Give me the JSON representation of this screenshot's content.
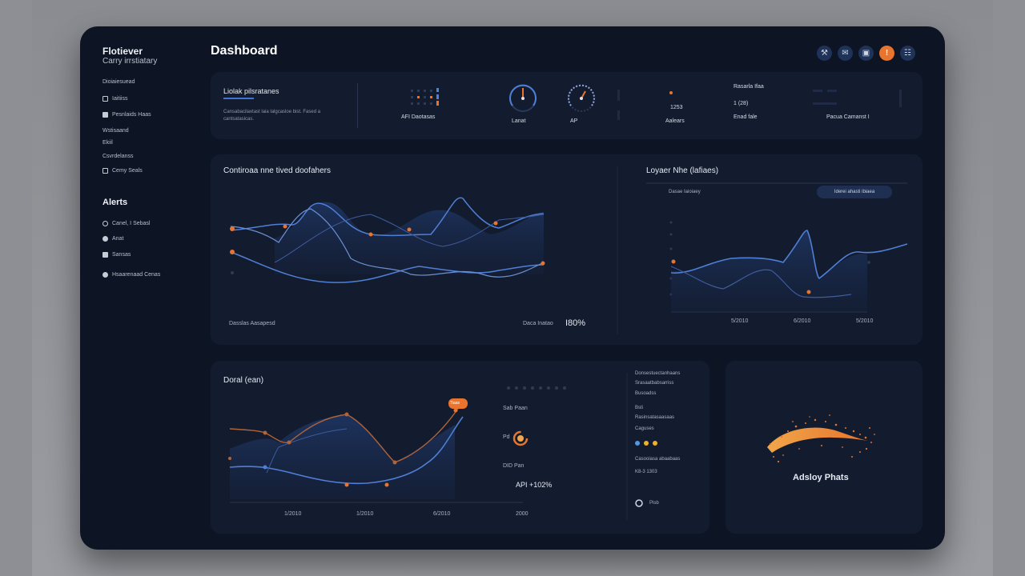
{
  "sidebar": {
    "brand_title": "Flotiever",
    "brand_subtitle": "Carry irrstiatary",
    "items": [
      {
        "label": "Dioiaiesuead"
      },
      {
        "label": "Iaitiiss"
      },
      {
        "label": "Pesnlaids Haas"
      },
      {
        "label": "Wstisaand"
      },
      {
        "label": "Ekiil"
      },
      {
        "label": "Csvrdelanss"
      },
      {
        "label": "Cemy Seals"
      }
    ],
    "alerts_heading": "Alerts",
    "alerts": [
      {
        "label": "Canel, I Sebasl"
      },
      {
        "label": "Anat"
      },
      {
        "label": "Sansas"
      },
      {
        "label": "Hsaarenaad Cenas"
      }
    ]
  },
  "header": {
    "title": "Dashboard",
    "badge": "!"
  },
  "kpi": {
    "title": "Liolak pilsratanes",
    "description": "Cansabacilaxtast laia lalgcasloe bist. Fased a cantsatasicas.",
    "items": [
      {
        "label": "AFI Daotasas"
      },
      {
        "label": "Lanat"
      },
      {
        "label": "AP"
      },
      {
        "label": "Aalears",
        "value": "1253"
      },
      {
        "label": "Enad fale",
        "top": "Rasarla Ifaa",
        "value": "1 (28)"
      },
      {
        "label": "Pacua Camanst I"
      }
    ]
  },
  "chart1": {
    "title": "Contiroaa nne tived doofahers",
    "footer_left": "Dasslas Aasapesd",
    "footer_label": "Daca Inatao",
    "footer_value": "I80%"
  },
  "chart2": {
    "title": "Loyaer Nhe (lafiaes)",
    "legend": "Dasae Iaioiaey",
    "pill": "Iderei ahasti ibiaea",
    "x_ticks": [
      "5/2010",
      "6/2010",
      "5/2010"
    ]
  },
  "chart3": {
    "title": "Doral (ean)",
    "x_ticks": [
      "1/2010",
      "1/2010",
      "6/2010",
      "2000"
    ],
    "tooltip": "Tiaas",
    "mid": {
      "a": "Sab Paan",
      "b": "Pd",
      "c": "DID Pan",
      "value": "API +102%"
    },
    "side": {
      "l1": "Donsestuectanhaans",
      "l2": "Srasaatbabsarriss",
      "l3": "Busoadss",
      "l4": "Bsti",
      "l5": "Rasinsatasaasaas",
      "l6": "Caguses",
      "l7": "Casooiasa abaabaas",
      "l8": "K8-3 1303",
      "l9": "Pisb"
    }
  },
  "highlight": {
    "label": "Adsloy Phats"
  },
  "colors": {
    "accent_blue": "#4f7fd6",
    "accent_orange": "#e8742d",
    "card_bg": "#131c2e",
    "app_bg": "#0d1424"
  }
}
